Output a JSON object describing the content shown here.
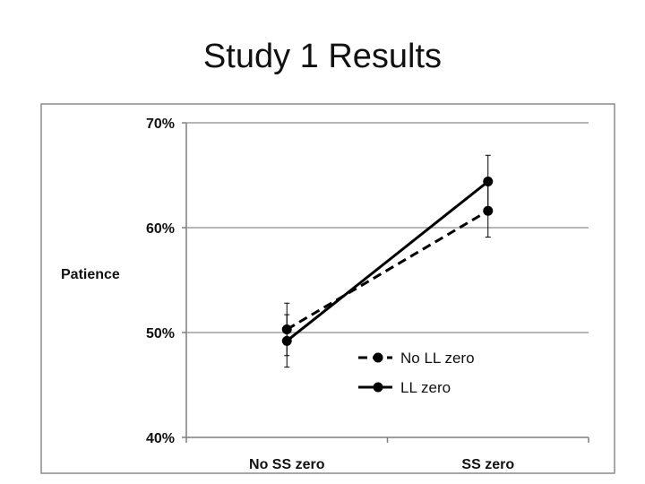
{
  "slide": {
    "title": "Study 1 Results"
  },
  "chart_data": {
    "type": "line",
    "title": "",
    "xlabel": "",
    "ylabel": "Patience",
    "categories": [
      "No SS zero",
      "SS zero"
    ],
    "ylim": [
      0.4,
      0.7
    ],
    "yticks": [
      0.4,
      0.5,
      0.6,
      0.7
    ],
    "ytick_labels": [
      "40%",
      "50%",
      "60%",
      "70%"
    ],
    "grid": true,
    "legend_position": "lower-right",
    "series": [
      {
        "name": "No LL zero",
        "values": [
          0.503,
          0.616
        ],
        "error": [
          0.025,
          0.025
        ],
        "line_style": "dashed",
        "color": "#000000",
        "marker": "circle"
      },
      {
        "name": "LL zero",
        "values": [
          0.492,
          0.644
        ],
        "error": [
          0.025,
          0.025
        ],
        "line_style": "solid",
        "color": "#000000",
        "marker": "circle"
      }
    ]
  }
}
